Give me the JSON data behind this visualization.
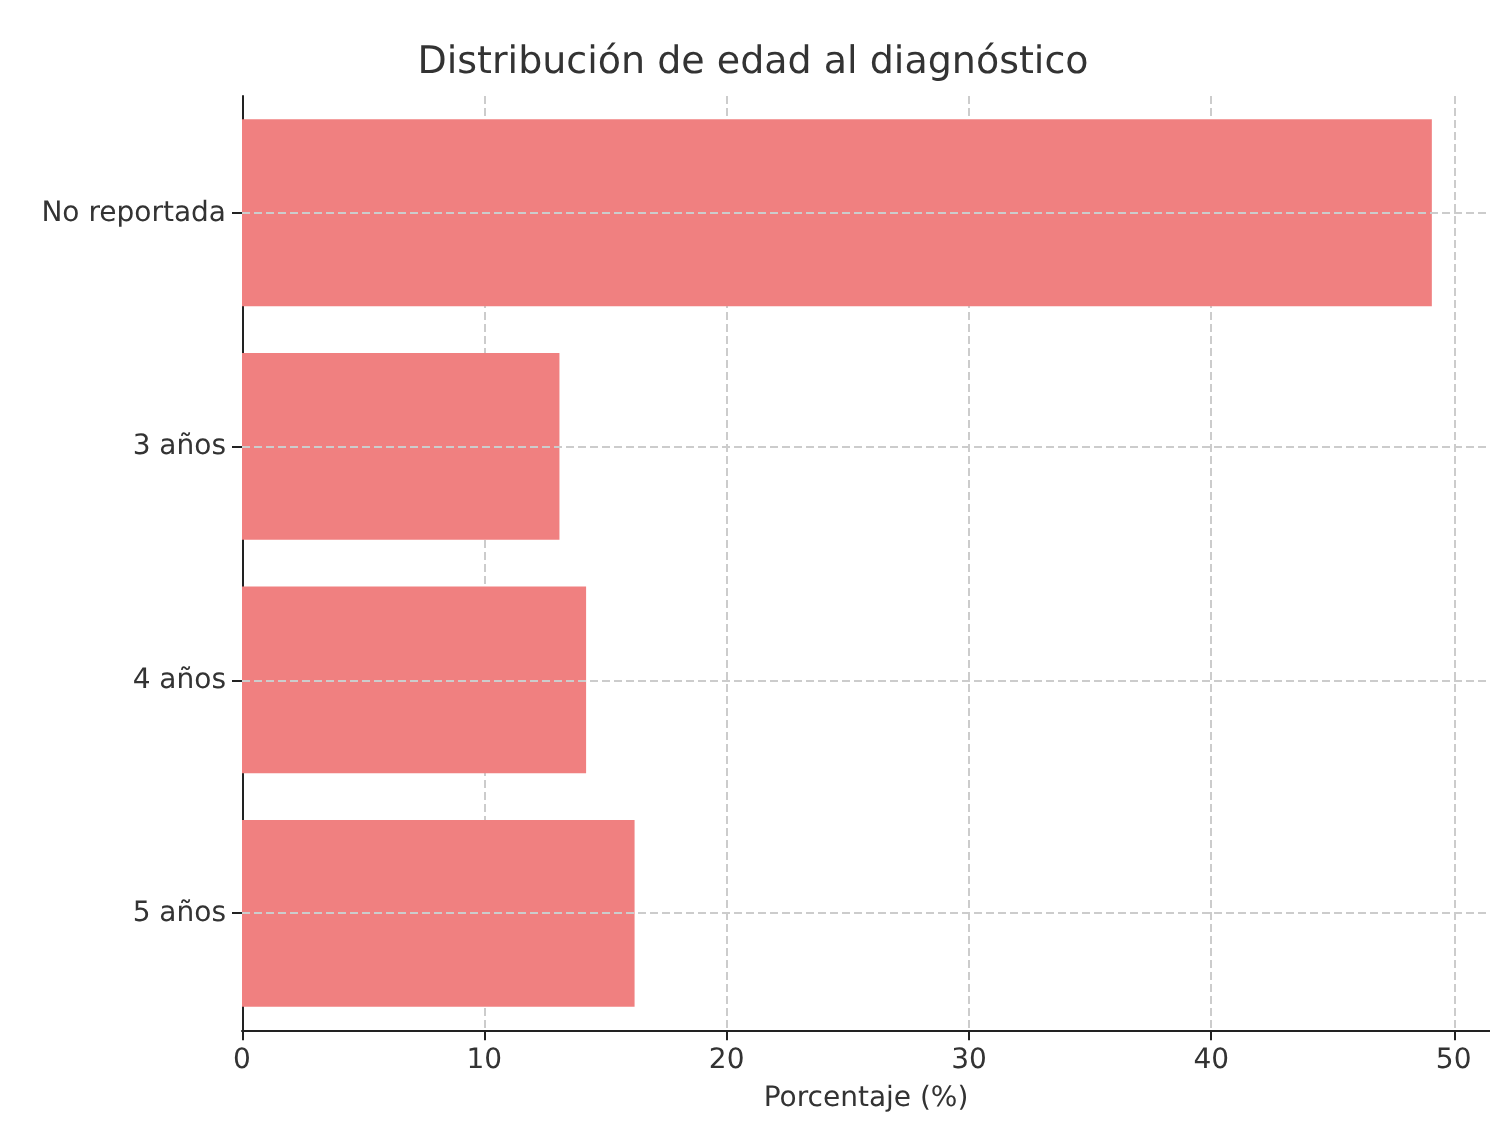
{
  "chart_data": {
    "type": "bar",
    "orientation": "horizontal",
    "title": "Distribución de edad al diagnóstico",
    "xlabel": "Porcentaje (%)",
    "categories": [
      "No reportada",
      "3 años",
      "4 años",
      "5 años"
    ],
    "values": [
      49.1,
      13.1,
      14.2,
      16.2
    ],
    "color": "#f08080",
    "xlim": [
      0,
      51.5
    ],
    "xticks": [
      0,
      10,
      20,
      30,
      40,
      50
    ],
    "grid": true
  }
}
